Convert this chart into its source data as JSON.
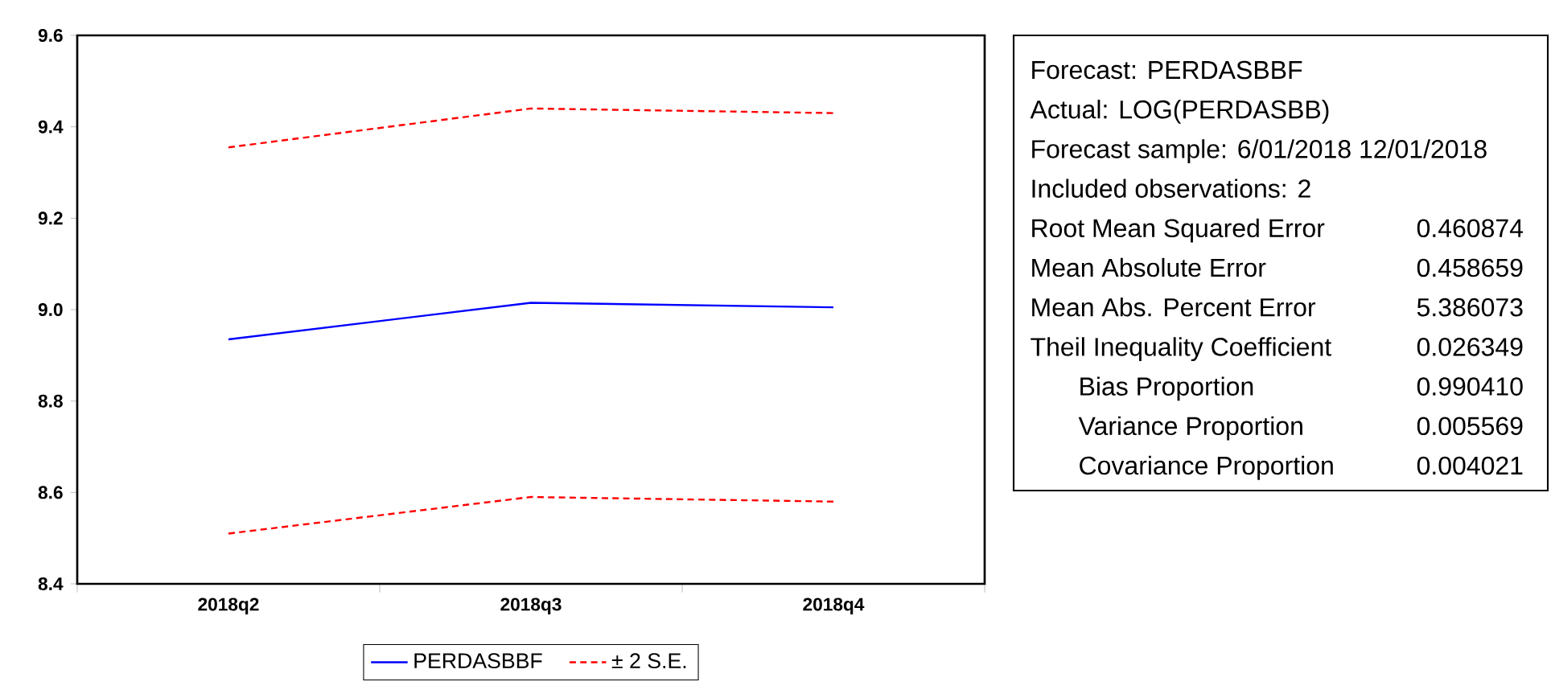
{
  "chart_data": [
    {
      "type": "line",
      "categories": [
        "2018q2",
        "2018q3",
        "2018q4"
      ],
      "series": [
        {
          "name": "PERDASBBF",
          "color": "#0000ff",
          "line_style": "solid",
          "values": [
            8.935,
            9.015,
            9.005
          ]
        },
        {
          "name": "± 2 S.E.",
          "color": "#ff0000",
          "line_style": "dashed",
          "values": [
            9.355,
            9.44,
            9.43
          ]
        },
        {
          "color": "#ff0000",
          "line_style": "dashed",
          "values": [
            8.51,
            8.59,
            8.58
          ]
        }
      ],
      "ylim": [
        8.4,
        9.6
      ],
      "yticks": [
        8.4,
        8.6,
        8.8,
        {
          "value": 9.0,
          "label": "9.0"
        },
        9.2,
        9.4,
        9.6
      ],
      "legend": "bottom"
    },
    {
      "type": "other",
      "annotations": [
        "Forecast: PERDASBBF",
        "Actual: LOG(PERDASBB)",
        "Forecast sample: 6/01/2018 12/01/2018",
        "Included observations: 2",
        "Root Mean Squared Error",
        "0.460874",
        "Mean Absolute Error",
        "0.458659",
        "Mean Abs. Percent Error",
        "5.386073",
        "Theil Inequality Coefficient",
        "0.026349",
        "Bias Proportion",
        "0.990410",
        "Variance Proportion",
        "0.005569",
        "Covariance Proportion",
        "0.004021"
      ]
    }
  ]
}
